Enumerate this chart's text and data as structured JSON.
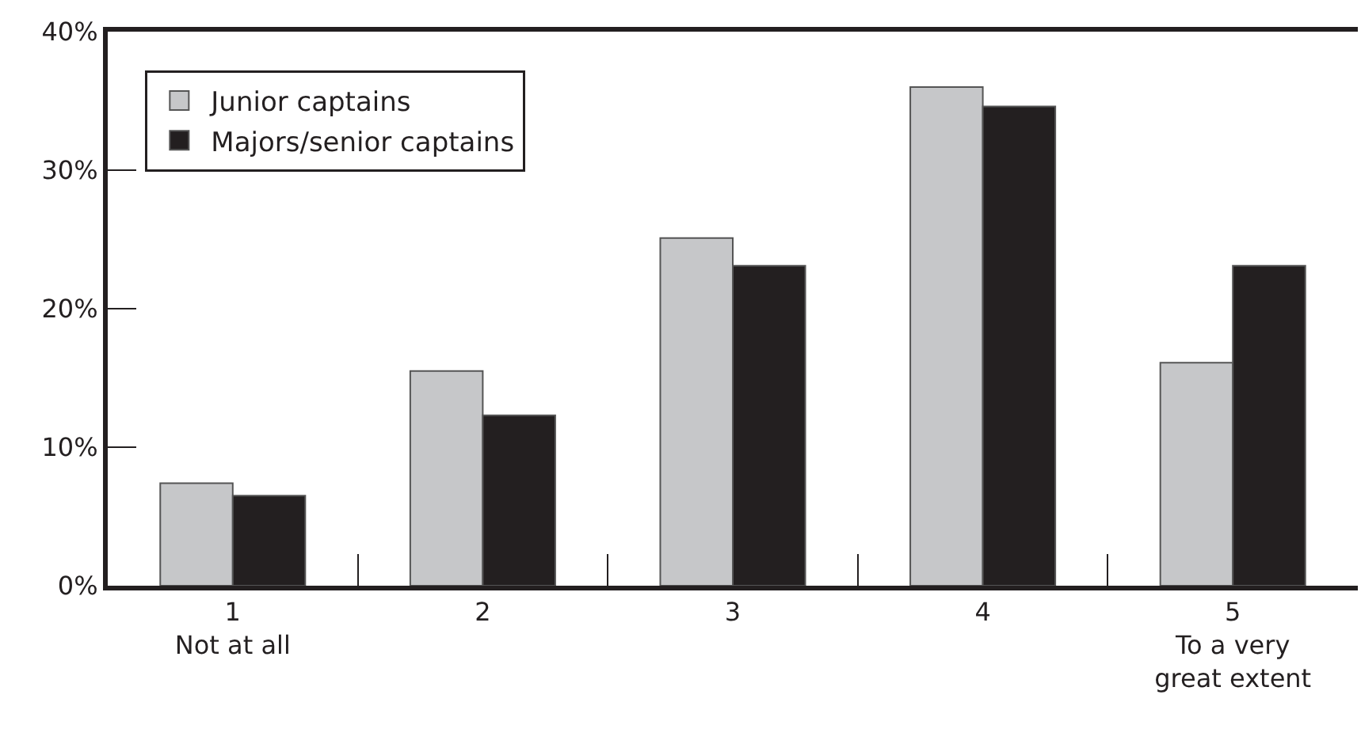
{
  "chart_data": {
    "type": "bar",
    "categories": [
      "1\nNot at all",
      "2",
      "3",
      "4",
      "5\nTo a very\ngreat extent"
    ],
    "series": [
      {
        "name": "Junior captains",
        "color": "#c6c7c9",
        "values": [
          7.4,
          15.5,
          25.1,
          36.0,
          16.1
        ]
      },
      {
        "name": "Majors/senior captains",
        "color": "#231f20",
        "values": [
          6.5,
          12.3,
          23.1,
          34.6,
          23.1
        ]
      }
    ],
    "ylim": [
      0,
      40
    ],
    "yticks": [
      {
        "value": 0,
        "label": "0%"
      },
      {
        "value": 10,
        "label": "10%"
      },
      {
        "value": 20,
        "label": "20%"
      },
      {
        "value": 30,
        "label": "30%"
      },
      {
        "value": 40,
        "label": "40%"
      }
    ],
    "legend": "top left"
  }
}
